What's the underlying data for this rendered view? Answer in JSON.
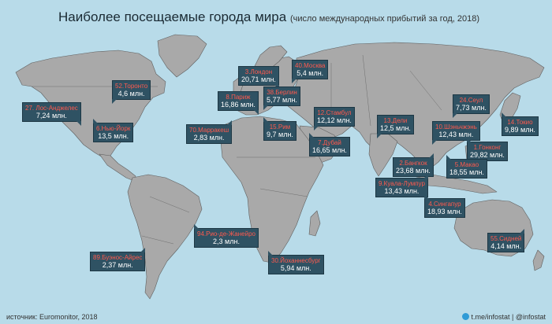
{
  "title": "Наиболее посещаемые города мира",
  "subtitle": "(число международных прибытий за год, 2018)",
  "source": "источник: Euromonitor, 2018",
  "credit": "t.me/infostat | @infostat",
  "colors": {
    "ocean": "#b8dbe9",
    "land": "#a7a7a7",
    "callout_bg": "#2f5263",
    "city_text": "#ff5a4e"
  },
  "cities": [
    {
      "label": "40.Москва",
      "value": "5,4 млн."
    },
    {
      "label": "3.Лондон",
      "value": "20,71 млн."
    },
    {
      "label": "52.Торонто",
      "value": "4,6 млн."
    },
    {
      "label": "8.Париж",
      "value": "16,86 млн."
    },
    {
      "label": "38.Берлин",
      "value": "5,77 млн."
    },
    {
      "label": "24.Сеул",
      "value": "7,73 млн."
    },
    {
      "label": "27. Лос-Анджелес",
      "value": "7,24 млн."
    },
    {
      "label": "12.Стамбул",
      "value": "12,12 млн."
    },
    {
      "label": "13.Дели",
      "value": "12,5 млн."
    },
    {
      "label": "14.Токио",
      "value": "9,89 млн."
    },
    {
      "label": "6.Нью-Йорк",
      "value": "13,5 млн."
    },
    {
      "label": "70.Марракеш",
      "value": "2,83 млн."
    },
    {
      "label": "15.Рим",
      "value": "9,7 млн."
    },
    {
      "label": "10.Шэньчжэнь",
      "value": "12,43 млн."
    },
    {
      "label": "1.Гонконг",
      "value": "29,82 млн."
    },
    {
      "label": "7.Дубай",
      "value": "16,65 млн."
    },
    {
      "label": "5.Макао",
      "value": "18,55 млн."
    },
    {
      "label": "2.Бангкок",
      "value": "23,68 млн."
    },
    {
      "label": "9.Куала-Лумпур",
      "value": "13,43 млн."
    },
    {
      "label": "4.Сингапур",
      "value": "18,93 млн."
    },
    {
      "label": "94.Рио-де-Жанейро",
      "value": "2,3 млн."
    },
    {
      "label": "55.Сидней",
      "value": "4,14 млн."
    },
    {
      "label": "89.Буэнос-Айрес",
      "value": "2,37 млн."
    },
    {
      "label": "30.Йоханнесбург",
      "value": "5,94 млн."
    }
  ]
}
